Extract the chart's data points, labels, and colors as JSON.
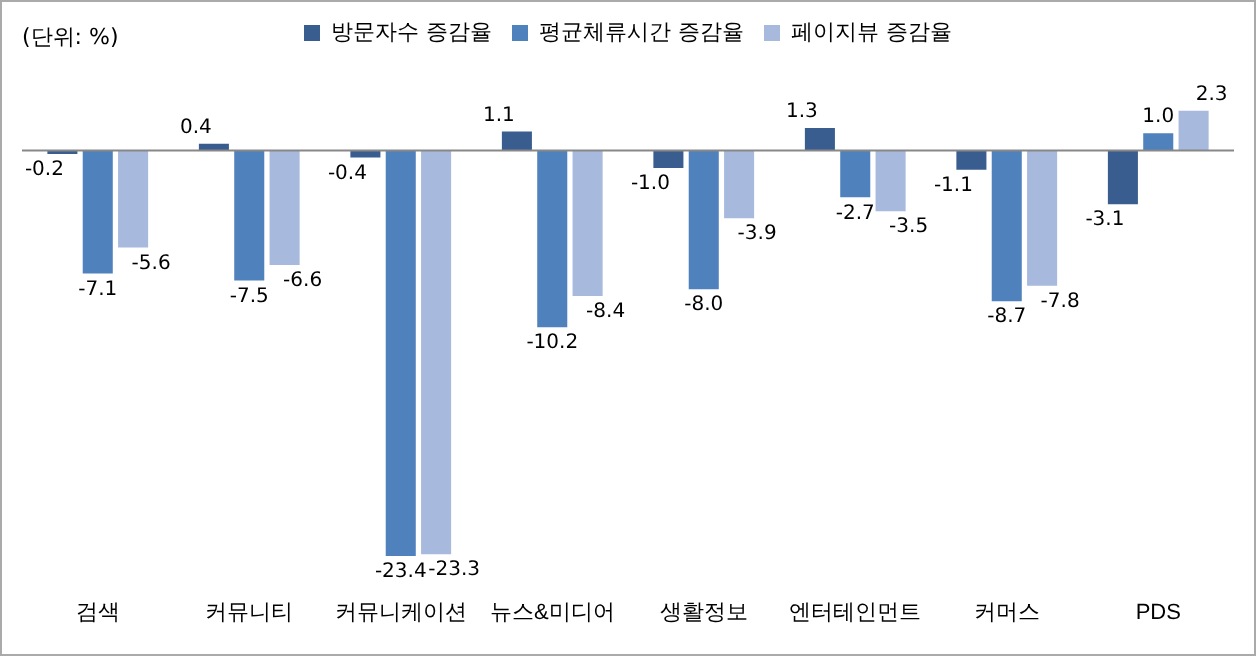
{
  "chart_data": {
    "type": "bar",
    "annotations": [
      "(단위: %)"
    ],
    "categories": [
      "검색",
      "커뮤니티",
      "커뮤니케이션",
      "뉴스&미디어",
      "생활정보",
      "엔터테인먼트",
      "커머스",
      "PDS"
    ],
    "series": [
      {
        "name": "방문자수 증감율",
        "color": "#3a5d8f",
        "values": [
          -0.2,
          0.4,
          -0.4,
          1.1,
          -1.0,
          1.3,
          -1.1,
          -3.1
        ],
        "value_labels": [
          "-0.2",
          "0.4",
          "-0.4",
          "1.1",
          "-1.0",
          "1.3",
          "-1.1",
          "-3.1"
        ]
      },
      {
        "name": "평균체류시간 증감율",
        "color": "#4f81bd",
        "values": [
          -7.1,
          -7.5,
          -23.4,
          -10.2,
          -8.0,
          -2.7,
          -8.7,
          1.0
        ],
        "value_labels": [
          "-7.1",
          "-7.5",
          "-23.4",
          "-10.2",
          "-8.0",
          "-2.7",
          "-8.7",
          "1.0"
        ]
      },
      {
        "name": "페이지뷰 증감율",
        "color": "#a7b9dd",
        "values": [
          -5.6,
          -6.6,
          -23.3,
          -8.4,
          -3.9,
          -3.5,
          -7.8,
          2.3
        ],
        "value_labels": [
          "-5.6",
          "-6.6",
          "-23.3",
          "-8.4",
          "-3.9",
          "-3.5",
          "-7.8",
          "2.3"
        ]
      }
    ],
    "legend": "top",
    "grid": false
  }
}
